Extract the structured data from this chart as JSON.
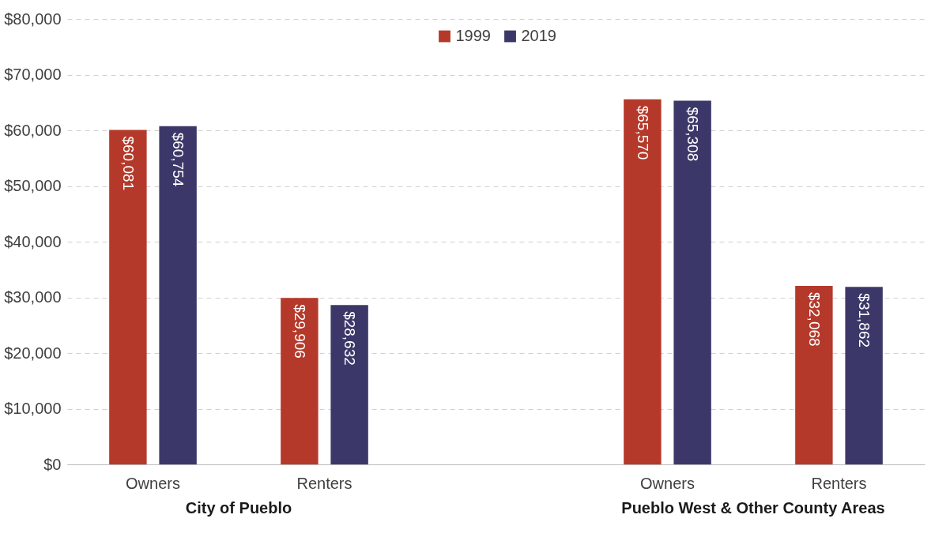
{
  "chart_data": {
    "type": "bar",
    "categories": [
      "Owners",
      "Renters",
      null,
      "Owners",
      "Renters"
    ],
    "series": [
      {
        "name": "1999",
        "color": "#b5392a",
        "values": [
          60081,
          29906,
          null,
          65570,
          32068
        ],
        "value_labels": [
          "$60,081",
          "$29,906",
          null,
          "$65,570",
          "$32,068"
        ]
      },
      {
        "name": "2019",
        "color": "#3b3869",
        "values": [
          60754,
          28632,
          null,
          65308,
          31862
        ],
        "value_labels": [
          "$60,754",
          "$28,632",
          null,
          "$65,308",
          "$31,862"
        ]
      }
    ],
    "ylim": [
      0,
      80000
    ],
    "yticks": [
      {
        "value": 0,
        "label": "$0"
      },
      {
        "value": 10000,
        "label": "$10,000"
      },
      {
        "value": 20000,
        "label": "$20,000"
      },
      {
        "value": 30000,
        "label": "$30,000"
      },
      {
        "value": 40000,
        "label": "$40,000"
      },
      {
        "value": 50000,
        "label": "$50,000"
      },
      {
        "value": 60000,
        "label": "$60,000"
      },
      {
        "value": 70000,
        "label": "$70,000"
      },
      {
        "value": 80000,
        "label": "$80,000"
      }
    ],
    "grid": "y",
    "legend": "top",
    "annotations": [
      "City of Pueblo",
      "Pueblo West & Other County Areas"
    ]
  }
}
